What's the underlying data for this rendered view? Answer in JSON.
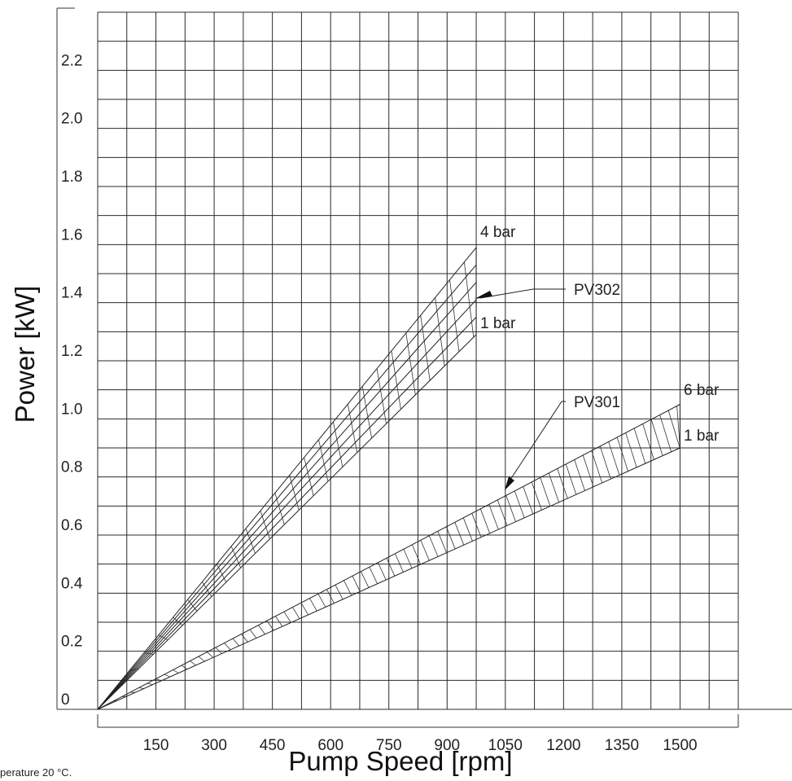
{
  "chart_data": {
    "type": "line",
    "xlabel": "Pump Speed [rpm]",
    "ylabel": "Power [kW]",
    "x_ticks": [
      "150",
      "300",
      "450",
      "600",
      "750",
      "900",
      "1050",
      "1200",
      "1350",
      "1500"
    ],
    "y_ticks": [
      "0",
      "0.2",
      "0.4",
      "0.6",
      "0.8",
      "1.0",
      "1.2",
      "1.4",
      "1.6",
      "1.8",
      "2.0",
      "2.2"
    ],
    "xlim": [
      0,
      1650
    ],
    "ylim": [
      0,
      2.4
    ],
    "grid": true,
    "series": [
      {
        "name": "PV302",
        "band": true,
        "lower": {
          "label": "1 bar",
          "x": [
            0,
            975
          ],
          "y": [
            0,
            1.29
          ]
        },
        "upper": {
          "label": "4 bar",
          "x": [
            0,
            975
          ],
          "y": [
            0,
            1.59
          ]
        },
        "inner_lines_y_end": [
          1.35,
          1.41,
          1.47,
          1.53
        ]
      },
      {
        "name": "PV301",
        "band": true,
        "lower": {
          "label": "1 bar",
          "x": [
            0,
            1500
          ],
          "y": [
            0,
            0.9
          ]
        },
        "upper": {
          "label": "6 bar",
          "x": [
            0,
            1500
          ],
          "y": [
            0,
            1.05
          ]
        }
      }
    ],
    "annotations": {
      "pv302": "PV302",
      "pv301": "PV301",
      "pv302_top": "4 bar",
      "pv302_bottom": "1 bar",
      "pv301_top": "6 bar",
      "pv301_bottom": "1 bar"
    },
    "footnote": "perature 20 °C."
  }
}
